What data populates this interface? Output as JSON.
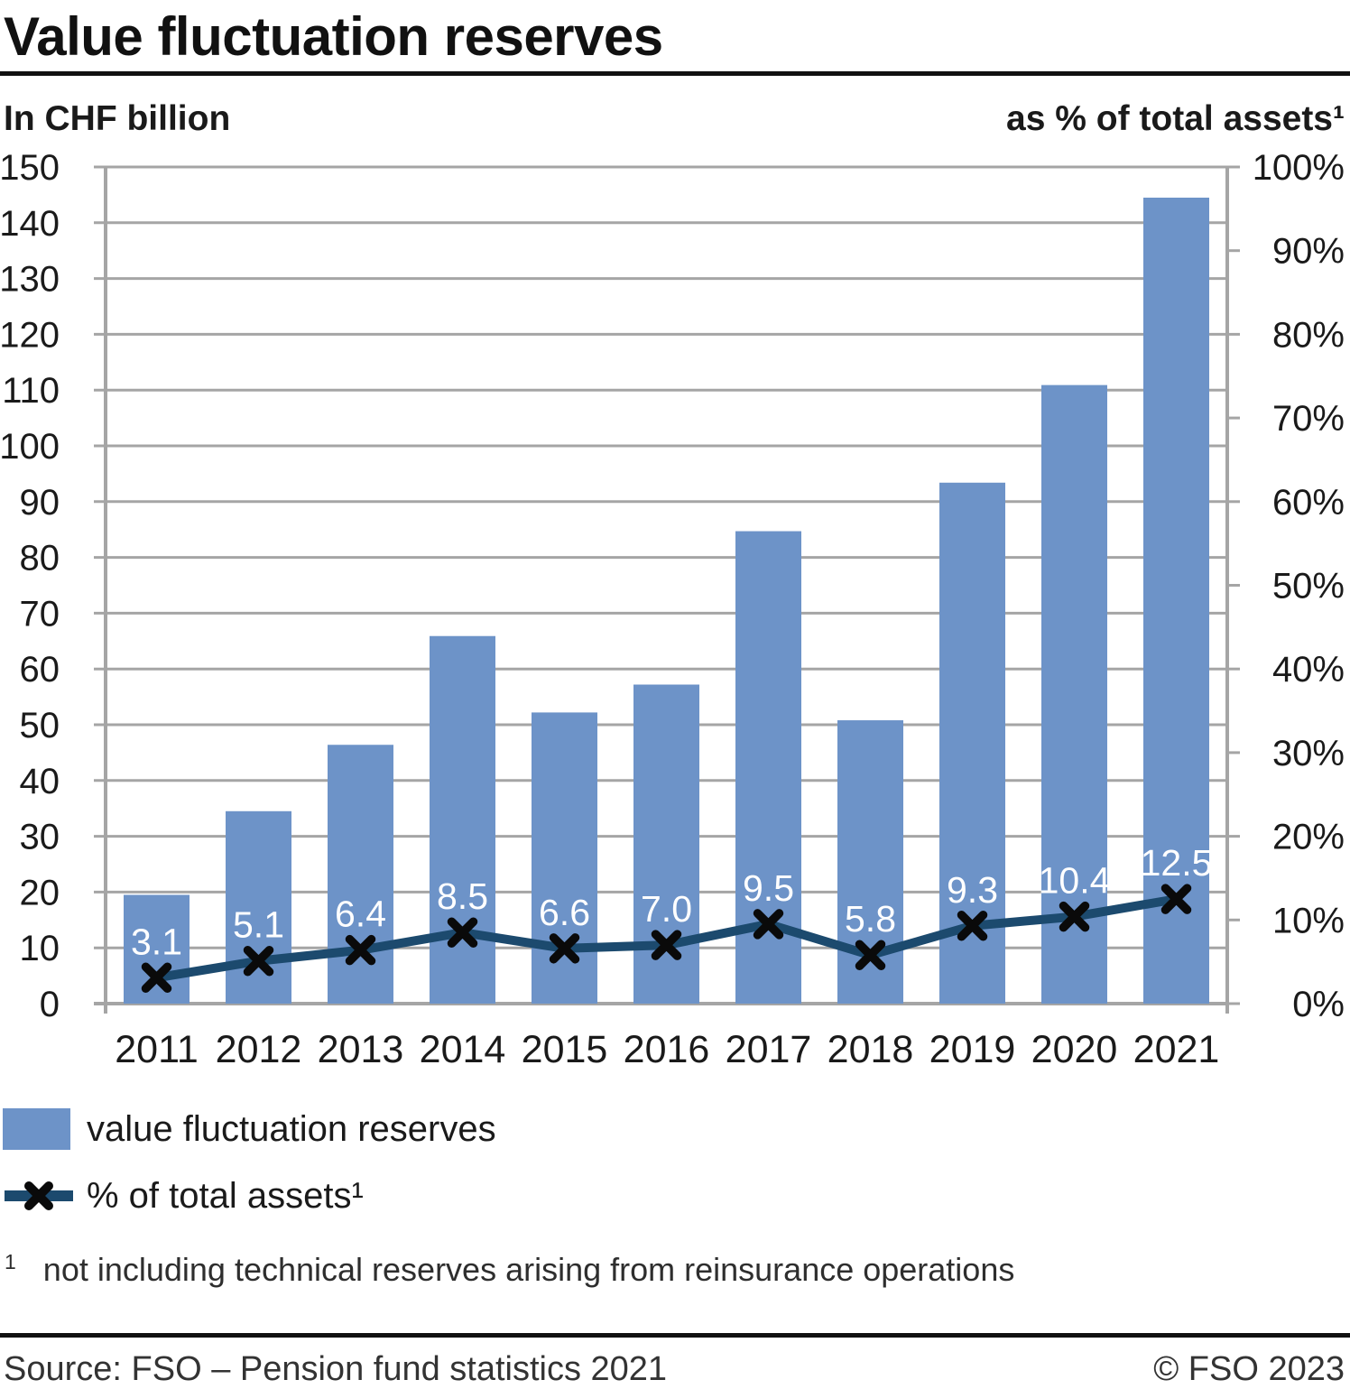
{
  "title": "Value fluctuation reserves",
  "left_axis_header": "In CHF billion",
  "right_axis_header": "as % of total assets¹",
  "legend": {
    "bar_label": "value fluctuation reserves",
    "line_label": "% of total assets¹"
  },
  "footnote": {
    "marker": "1",
    "text": "not including technical reserves arising from reinsurance operations"
  },
  "footer": {
    "source": "Source: FSO – Pension fund statistics 2021",
    "copyright": "© FSO 2023"
  },
  "colors": {
    "bar": "#6d93c8",
    "line": "#1c4a6e",
    "marker": "#0a0a0a",
    "grid": "#a5a5a5",
    "axis_text": "#1a1a1a",
    "point_label": "#ffffff"
  },
  "chart_data": {
    "type": "bar+line",
    "categories": [
      "2011",
      "2012",
      "2013",
      "2014",
      "2015",
      "2016",
      "2017",
      "2018",
      "2019",
      "2020",
      "2021"
    ],
    "series": [
      {
        "name": "value fluctuation reserves",
        "type": "bar",
        "axis": "left",
        "unit": "CHF billion",
        "values": [
          19.5,
          34.5,
          46.4,
          65.9,
          52.2,
          57.2,
          84.7,
          50.8,
          93.4,
          110.9,
          144.5
        ]
      },
      {
        "name": "% of total assets",
        "type": "line",
        "axis": "right",
        "unit": "%",
        "values": [
          3.1,
          5.1,
          6.4,
          8.5,
          6.6,
          7.0,
          9.5,
          5.8,
          9.3,
          10.4,
          12.5
        ],
        "point_labels": [
          "3.1",
          "5.1",
          "6.4",
          "8.5",
          "6.6",
          "7.0",
          "9.5",
          "5.8",
          "9.3",
          "10.4",
          "12.5"
        ]
      }
    ],
    "left_axis": {
      "min": 0,
      "max": 150,
      "step": 10,
      "label": "In CHF billion"
    },
    "right_axis": {
      "min": 0,
      "max": 100,
      "step": 10,
      "suffix": "%",
      "label": "as % of total assets"
    },
    "grid": true,
    "legend_position": "bottom-left"
  }
}
